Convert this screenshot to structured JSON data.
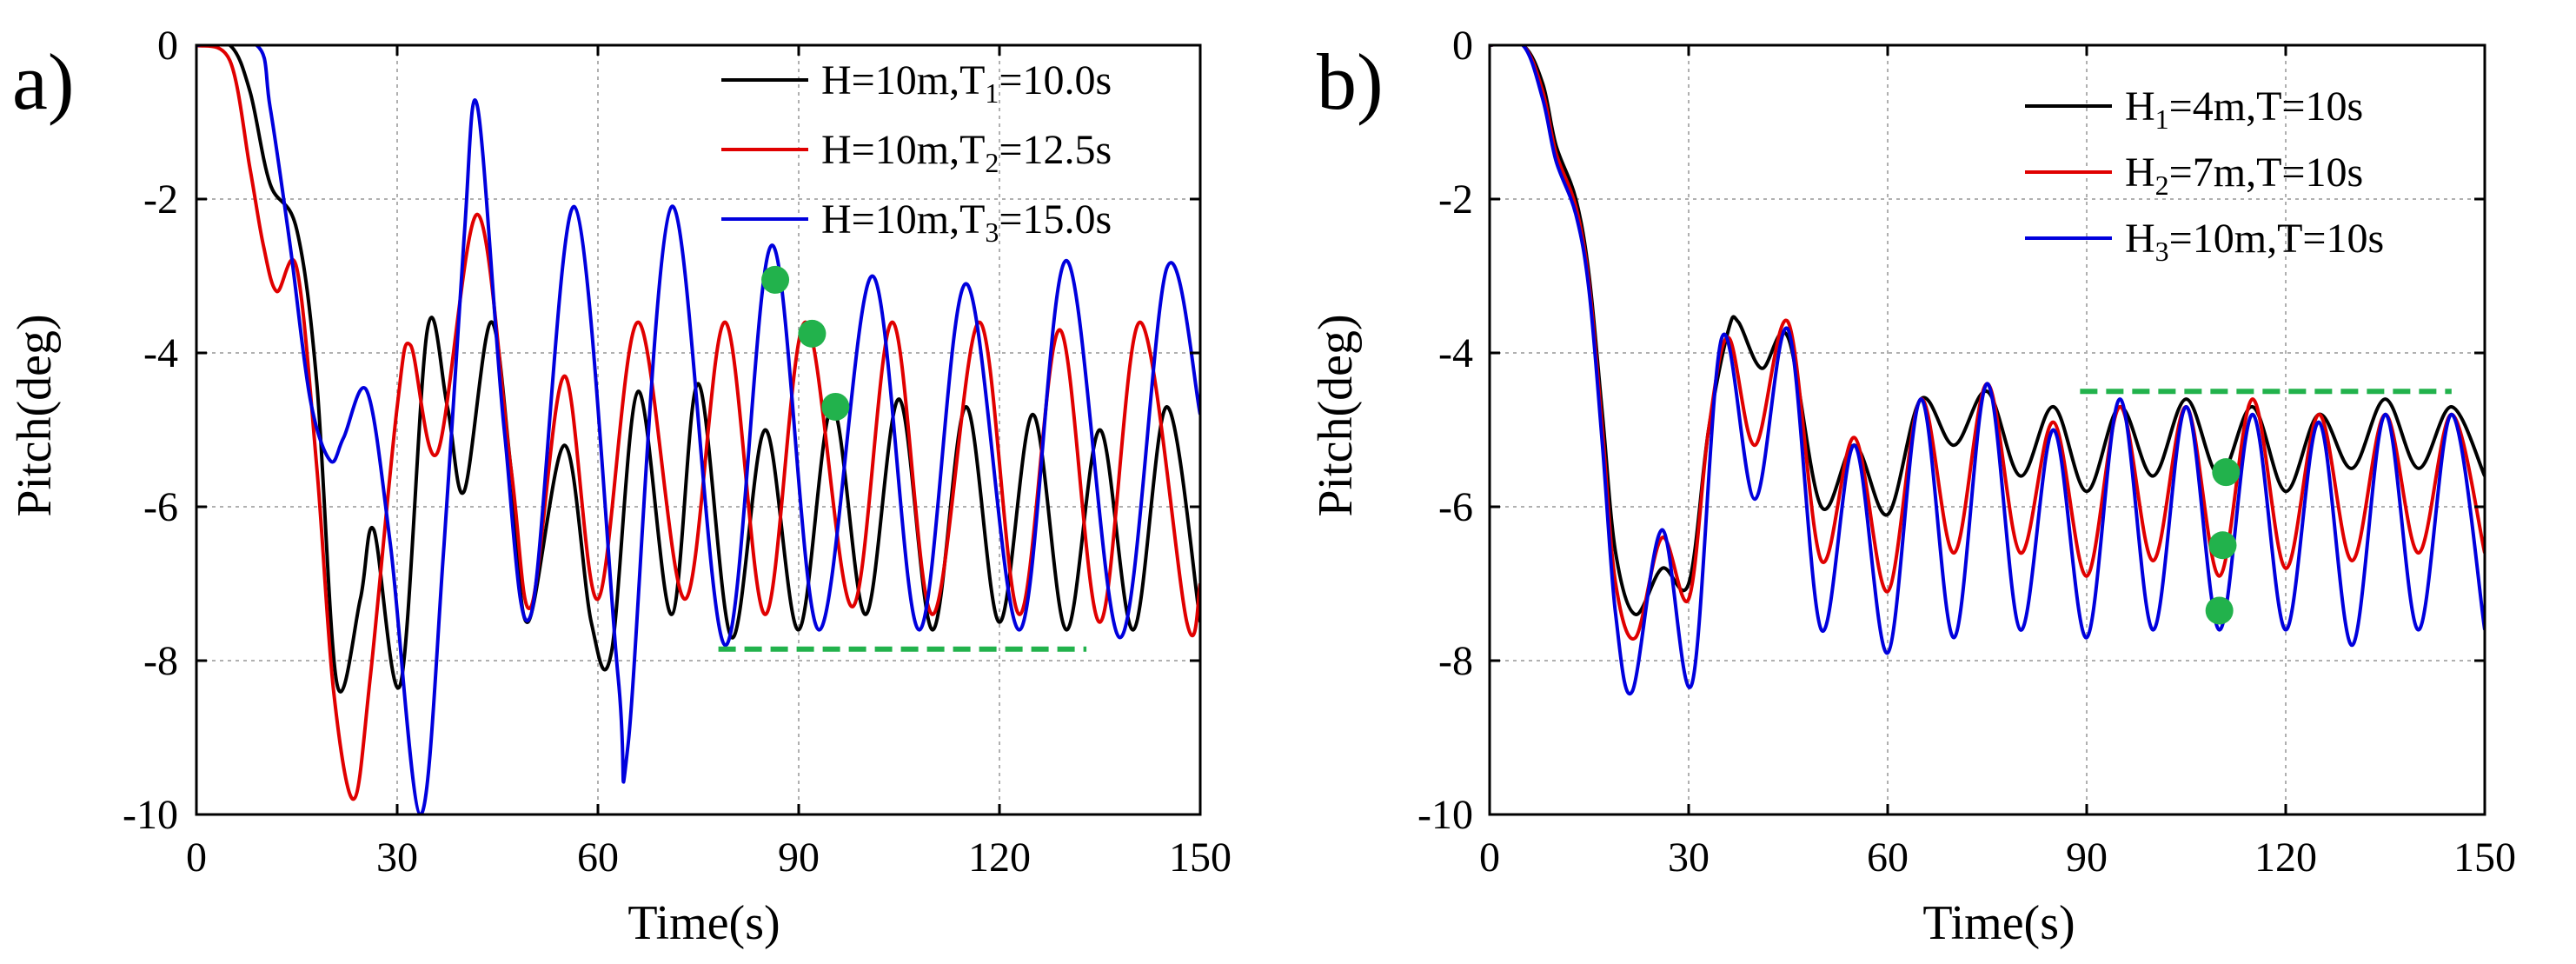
{
  "chart_data": [
    {
      "type": "line",
      "panel_label": "a)",
      "xlabel": "Time(s)",
      "ylabel": "Pitch(deg)",
      "xlim": [
        0,
        150
      ],
      "ylim": [
        -10,
        0
      ],
      "xticks": [
        "0",
        "30",
        "60",
        "90",
        "120",
        "150"
      ],
      "yticks": [
        "0",
        "-2",
        "-4",
        "-6",
        "-8",
        "-10"
      ],
      "grid": true,
      "legend_position": "top-right",
      "series": [
        {
          "name": "H=10m,T1=10.0s",
          "legend": {
            "a": "H=10m,T",
            "sub": "1",
            "b": "=10.0s"
          },
          "color": "#000000",
          "points": [
            [
              0,
              0
            ],
            [
              5,
              0
            ],
            [
              8,
              -0.6
            ],
            [
              11,
              -1.8
            ],
            [
              15,
              -2.4
            ],
            [
              18,
              -4.4
            ],
            [
              21,
              -8.3
            ],
            [
              24.5,
              -7.2
            ],
            [
              26.5,
              -6.3
            ],
            [
              30.5,
              -8.3
            ],
            [
              34.5,
              -3.7
            ],
            [
              37.5,
              -4.7
            ],
            [
              40,
              -5.8
            ],
            [
              44,
              -3.6
            ],
            [
              47,
              -5.5
            ],
            [
              49.5,
              -7.5
            ],
            [
              55,
              -5.2
            ],
            [
              59,
              -7.5
            ],
            [
              62,
              -7.9
            ],
            [
              66,
              -4.5
            ],
            [
              71,
              -7.4
            ],
            [
              75,
              -4.4
            ],
            [
              80,
              -7.7
            ],
            [
              85,
              -5.0
            ],
            [
              90,
              -7.6
            ],
            [
              95,
              -4.7
            ],
            [
              100,
              -7.4
            ],
            [
              105,
              -4.6
            ],
            [
              110,
              -7.6
            ],
            [
              115,
              -4.7
            ],
            [
              120,
              -7.5
            ],
            [
              125,
              -4.8
            ],
            [
              130,
              -7.6
            ],
            [
              135,
              -5.0
            ],
            [
              140,
              -7.6
            ],
            [
              145,
              -4.7
            ],
            [
              150,
              -7.5
            ]
          ]
        },
        {
          "name": "H=10m,T2=12.5s",
          "legend": {
            "a": "H=10m,T",
            "sub": "2",
            "b": "=12.5s"
          },
          "color": "#e00000",
          "points": [
            [
              0,
              0
            ],
            [
              5,
              -0.2
            ],
            [
              8,
              -1.6
            ],
            [
              10,
              -2.6
            ],
            [
              12,
              -3.2
            ],
            [
              15,
              -2.9
            ],
            [
              18,
              -5.5
            ],
            [
              20.5,
              -8.4
            ],
            [
              23.5,
              -9.8
            ],
            [
              26,
              -8.2
            ],
            [
              30,
              -4.7
            ],
            [
              32,
              -3.9
            ],
            [
              36,
              -5.3
            ],
            [
              42,
              -2.2
            ],
            [
              47,
              -5.5
            ],
            [
              50,
              -7.3
            ],
            [
              55,
              -4.3
            ],
            [
              60,
              -7.2
            ],
            [
              66,
              -3.6
            ],
            [
              73,
              -7.2
            ],
            [
              79,
              -3.6
            ],
            [
              85,
              -7.4
            ],
            [
              91,
              -3.6
            ],
            [
              98,
              -7.3
            ],
            [
              104,
              -3.6
            ],
            [
              110,
              -7.4
            ],
            [
              117,
              -3.6
            ],
            [
              123,
              -7.4
            ],
            [
              129,
              -3.7
            ],
            [
              135,
              -7.5
            ],
            [
              141,
              -3.6
            ],
            [
              148,
              -7.5
            ],
            [
              150,
              -7.0
            ]
          ]
        },
        {
          "name": "H=10m,T3=15.0s",
          "legend": {
            "a": "H=10m,T",
            "sub": "3",
            "b": "=15.0s"
          },
          "color": "#0000dd",
          "points": [
            [
              0,
              0
            ],
            [
              9,
              0
            ],
            [
              11,
              -0.8
            ],
            [
              14,
              -2.6
            ],
            [
              17,
              -4.6
            ],
            [
              20,
              -5.4
            ],
            [
              22,
              -5.1
            ],
            [
              25.5,
              -4.5
            ],
            [
              29,
              -6.5
            ],
            [
              33.5,
              -10.0
            ],
            [
              37,
              -6.5
            ],
            [
              40,
              -2.5
            ],
            [
              42,
              -0.8
            ],
            [
              46,
              -5.0
            ],
            [
              50,
              -7.4
            ],
            [
              56.5,
              -2.1
            ],
            [
              63,
              -8.2
            ],
            [
              64.5,
              -9.1
            ],
            [
              71,
              -2.1
            ],
            [
              79,
              -7.8
            ],
            [
              86,
              -2.6
            ],
            [
              93,
              -7.6
            ],
            [
              101,
              -3.0
            ],
            [
              108,
              -7.6
            ],
            [
              115,
              -3.1
            ],
            [
              123,
              -7.6
            ],
            [
              130,
              -2.8
            ],
            [
              138,
              -7.7
            ],
            [
              145,
              -2.9
            ],
            [
              150,
              -4.8
            ]
          ]
        }
      ],
      "annotations": {
        "points": [
          [
            86.5,
            -3.05
          ],
          [
            92,
            -3.75
          ],
          [
            95.5,
            -4.7
          ]
        ],
        "dashed_line": {
          "x": [
            78,
            133
          ],
          "y": -7.85
        },
        "color": "#22b24c"
      }
    },
    {
      "type": "line",
      "panel_label": "b)",
      "xlabel": "Time(s)",
      "ylabel": "Pitch(deg)",
      "xlim": [
        0,
        150
      ],
      "ylim": [
        -10,
        0
      ],
      "xticks": [
        "0",
        "30",
        "60",
        "90",
        "120",
        "150"
      ],
      "yticks": [
        "0",
        "-2",
        "-4",
        "-6",
        "-8",
        "-10"
      ],
      "grid": true,
      "legend_position": "top-right",
      "series": [
        {
          "name": "H1=4m,T=10s",
          "legend": {
            "a": "H",
            "sub": "1",
            "b": "=4m,T=10s"
          },
          "color": "#000000",
          "points": [
            [
              0,
              0
            ],
            [
              5,
              0
            ],
            [
              8,
              -0.5
            ],
            [
              10,
              -1.3
            ],
            [
              13,
              -2.0
            ],
            [
              15,
              -3.0
            ],
            [
              17,
              -4.8
            ],
            [
              19,
              -6.6
            ],
            [
              22,
              -7.4
            ],
            [
              26,
              -6.8
            ],
            [
              30,
              -7.0
            ],
            [
              33,
              -5.0
            ],
            [
              36,
              -3.7
            ],
            [
              37.5,
              -3.6
            ],
            [
              41,
              -4.2
            ],
            [
              45,
              -3.8
            ],
            [
              50,
              -6.0
            ],
            [
              55,
              -5.2
            ],
            [
              60,
              -6.1
            ],
            [
              65,
              -4.6
            ],
            [
              70,
              -5.2
            ],
            [
              75,
              -4.5
            ],
            [
              80,
              -5.6
            ],
            [
              85,
              -4.7
            ],
            [
              90,
              -5.8
            ],
            [
              95,
              -4.7
            ],
            [
              100,
              -5.6
            ],
            [
              105,
              -4.6
            ],
            [
              110,
              -5.6
            ],
            [
              115,
              -4.7
            ],
            [
              120,
              -5.8
            ],
            [
              125,
              -4.8
            ],
            [
              130,
              -5.5
            ],
            [
              135,
              -4.6
            ],
            [
              140,
              -5.5
            ],
            [
              145,
              -4.7
            ],
            [
              150,
              -5.6
            ]
          ]
        },
        {
          "name": "H2=7m,T=10s",
          "legend": {
            "a": "H",
            "sub": "2",
            "b": "=7m,T=10s"
          },
          "color": "#e00000",
          "points": [
            [
              0,
              0
            ],
            [
              5,
              0
            ],
            [
              8,
              -0.6
            ],
            [
              10,
              -1.4
            ],
            [
              13,
              -2.1
            ],
            [
              15,
              -3.1
            ],
            [
              17,
              -5.0
            ],
            [
              19,
              -7.0
            ],
            [
              22,
              -7.7
            ],
            [
              26,
              -6.4
            ],
            [
              30,
              -7.2
            ],
            [
              33,
              -5.0
            ],
            [
              36,
              -3.8
            ],
            [
              40,
              -5.2
            ],
            [
              45,
              -3.6
            ],
            [
              50,
              -6.7
            ],
            [
              55,
              -5.1
            ],
            [
              60,
              -7.1
            ],
            [
              65,
              -4.6
            ],
            [
              70,
              -6.6
            ],
            [
              75,
              -4.4
            ],
            [
              80,
              -6.6
            ],
            [
              85,
              -4.9
            ],
            [
              90,
              -6.9
            ],
            [
              95,
              -4.7
            ],
            [
              100,
              -6.7
            ],
            [
              105,
              -4.7
            ],
            [
              110,
              -6.9
            ],
            [
              115,
              -4.6
            ],
            [
              120,
              -6.8
            ],
            [
              125,
              -4.8
            ],
            [
              130,
              -6.7
            ],
            [
              135,
              -4.8
            ],
            [
              140,
              -6.6
            ],
            [
              145,
              -4.8
            ],
            [
              150,
              -6.6
            ]
          ]
        },
        {
          "name": "H3=10m,T=10s",
          "legend": {
            "a": "H",
            "sub": "3",
            "b": "=10m,T=10s"
          },
          "color": "#0000dd",
          "points": [
            [
              0,
              0
            ],
            [
              5,
              0
            ],
            [
              8,
              -0.7
            ],
            [
              10,
              -1.5
            ],
            [
              13,
              -2.2
            ],
            [
              15,
              -3.2
            ],
            [
              17,
              -5.2
            ],
            [
              19,
              -7.4
            ],
            [
              21.5,
              -8.4
            ],
            [
              26,
              -6.3
            ],
            [
              30.5,
              -8.3
            ],
            [
              35,
              -3.8
            ],
            [
              40,
              -5.9
            ],
            [
              45,
              -3.7
            ],
            [
              50,
              -7.6
            ],
            [
              55,
              -5.2
            ],
            [
              60,
              -7.9
            ],
            [
              65,
              -4.6
            ],
            [
              70,
              -7.7
            ],
            [
              75,
              -4.4
            ],
            [
              80,
              -7.6
            ],
            [
              85,
              -5.0
            ],
            [
              90,
              -7.7
            ],
            [
              95,
              -4.6
            ],
            [
              100,
              -7.6
            ],
            [
              105,
              -4.7
            ],
            [
              110,
              -7.6
            ],
            [
              115,
              -4.8
            ],
            [
              120,
              -7.6
            ],
            [
              125,
              -4.9
            ],
            [
              130,
              -7.8
            ],
            [
              135,
              -4.8
            ],
            [
              140,
              -7.6
            ],
            [
              145,
              -4.8
            ],
            [
              150,
              -7.6
            ]
          ]
        }
      ],
      "annotations": {
        "points": [
          [
            111,
            -5.55
          ],
          [
            110.5,
            -6.5
          ],
          [
            110,
            -7.35
          ]
        ],
        "dashed_line": {
          "x": [
            89,
            145
          ],
          "y": -4.5
        },
        "color": "#22b24c"
      }
    }
  ]
}
